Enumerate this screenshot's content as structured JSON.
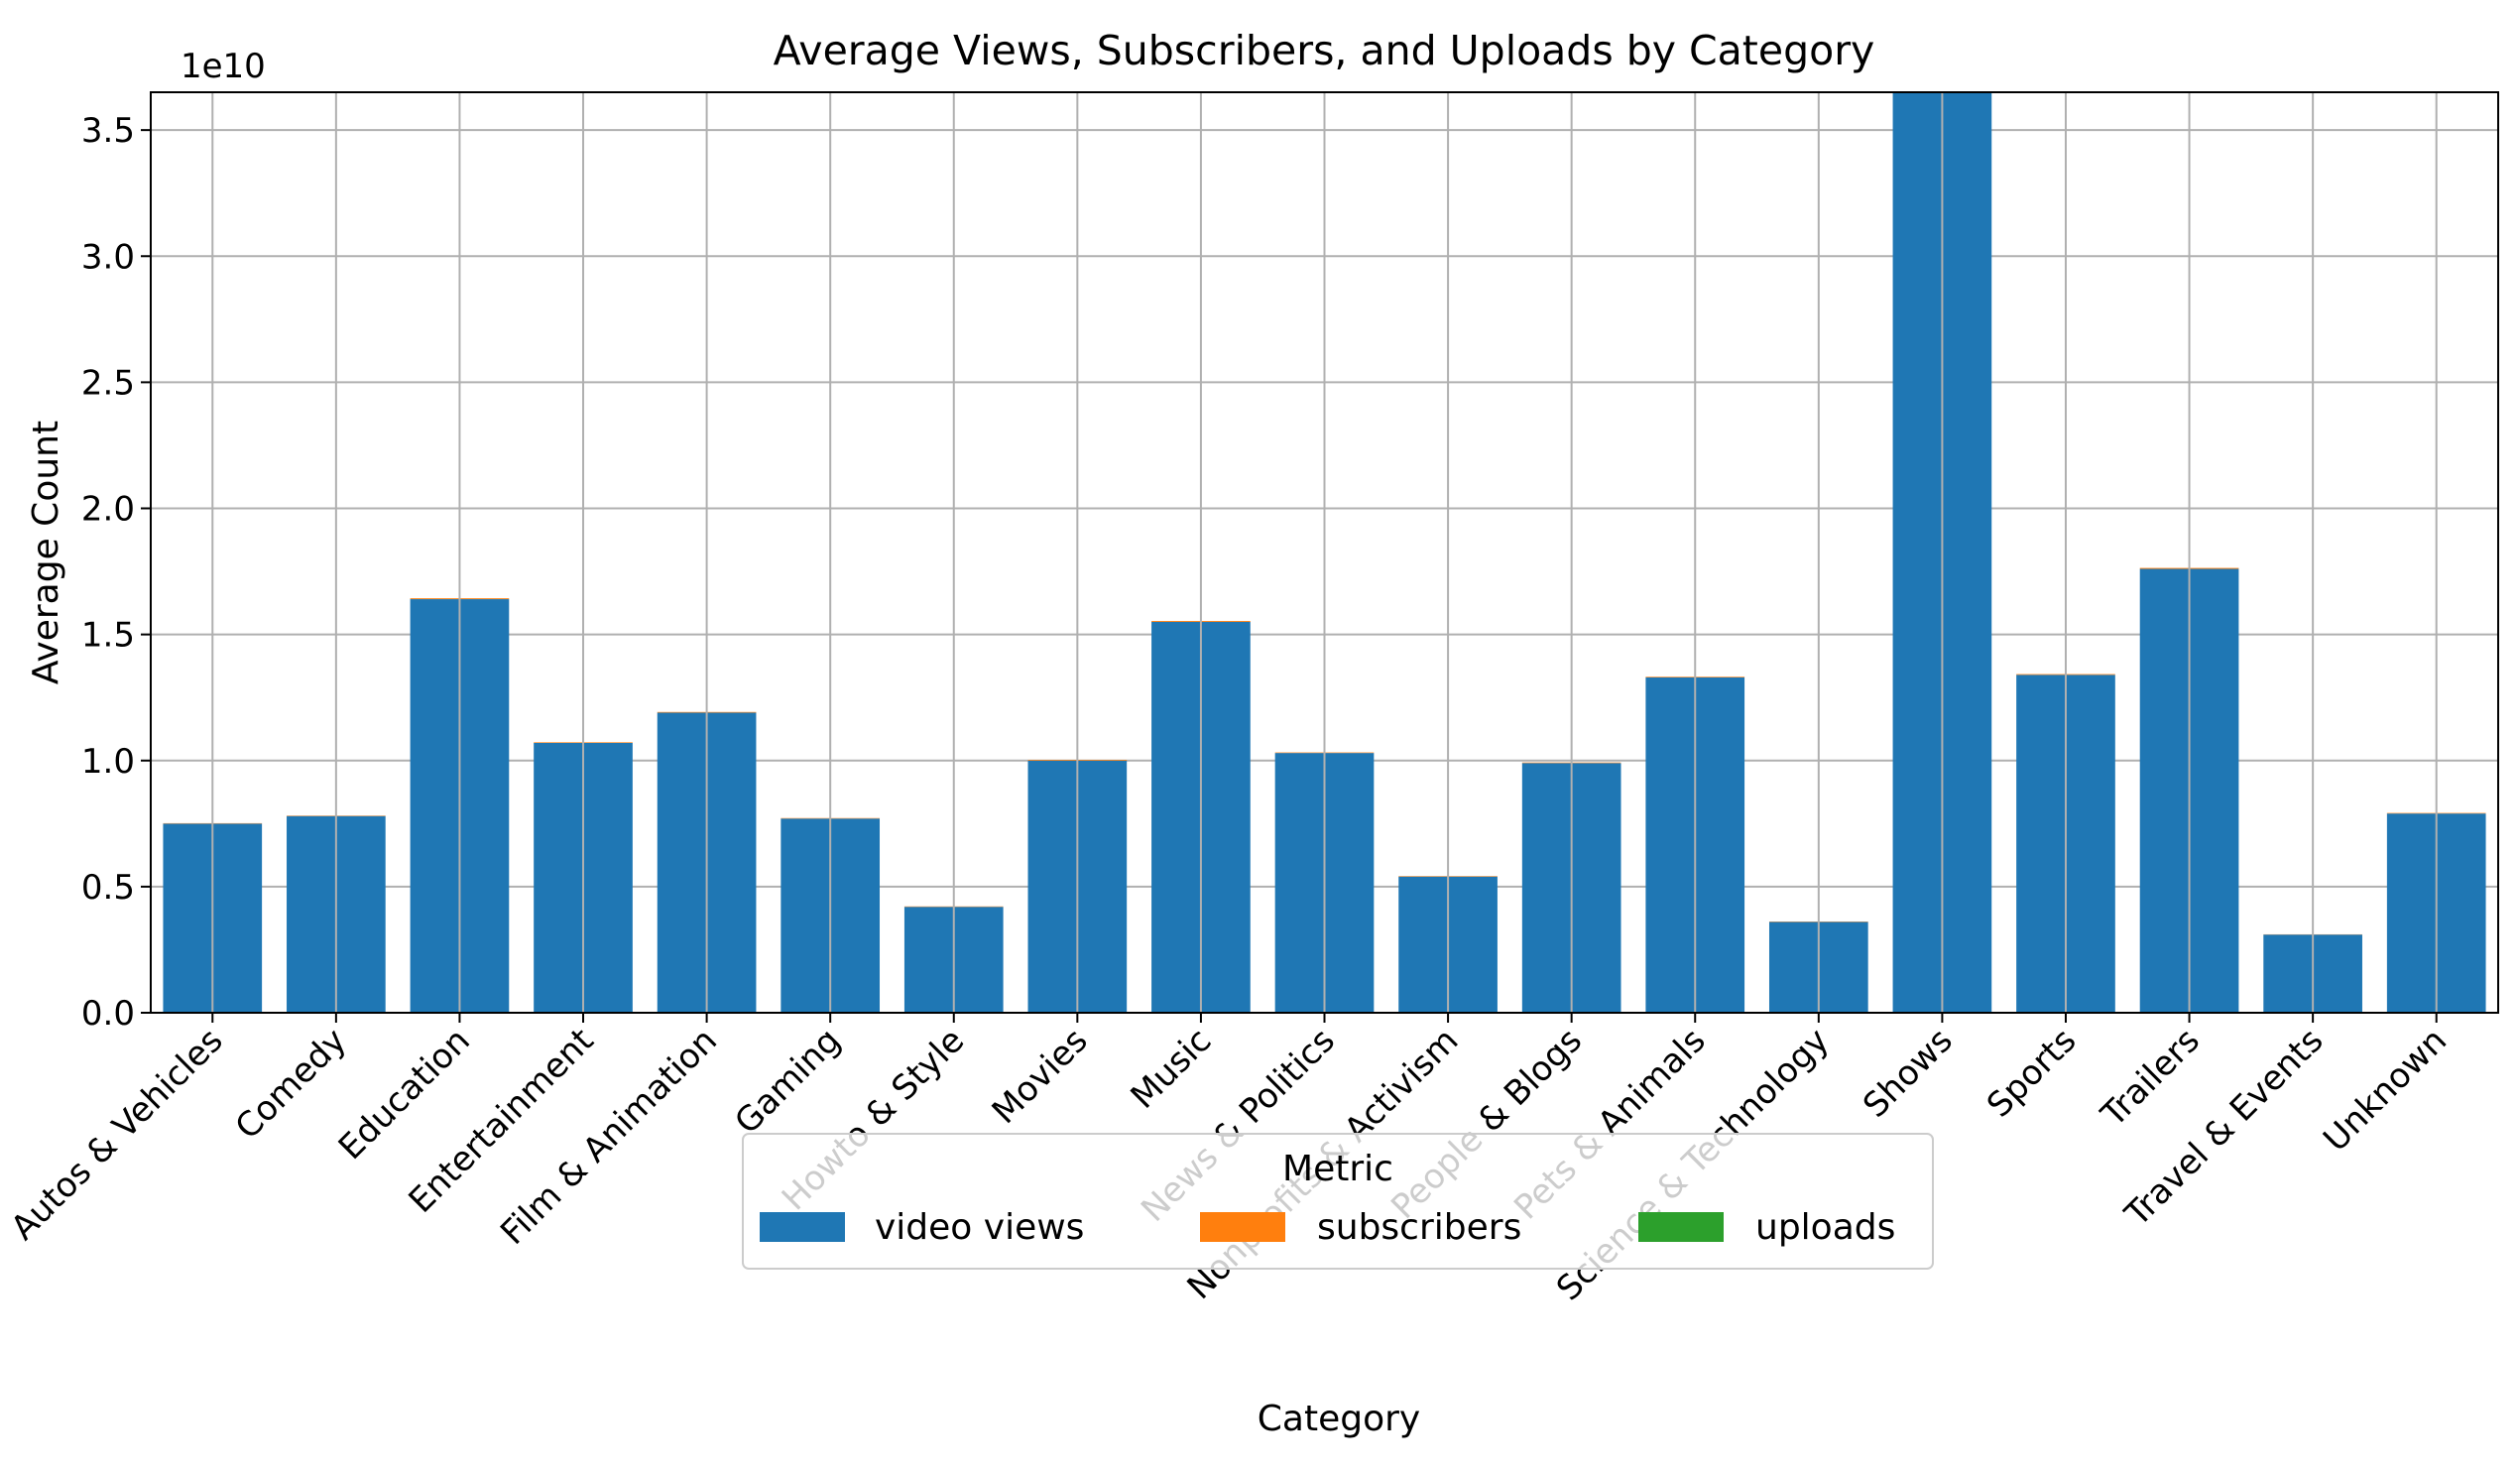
{
  "chart_data": {
    "type": "bar",
    "stacked": true,
    "title": "Average Views, Subscribers, and Uploads by Category",
    "xlabel": "Category",
    "ylabel": "Average Count",
    "y_offset_label": "1e10",
    "y_scale": 10000000000,
    "ylim": [
      0,
      36500000000
    ],
    "yticks": [
      0,
      5000000000,
      10000000000,
      15000000000,
      20000000000,
      25000000000,
      30000000000,
      35000000000
    ],
    "ytick_labels": [
      "0.0",
      "0.5",
      "1.0",
      "1.5",
      "2.0",
      "2.5",
      "3.0",
      "3.5"
    ],
    "grid": true,
    "legend": {
      "title": "Metric",
      "placement": "lower-center"
    },
    "categories": [
      "Autos & Vehicles",
      "Comedy",
      "Education",
      "Entertainment",
      "Film & Animation",
      "Gaming",
      "Howto & Style",
      "Movies",
      "Music",
      "News & Politics",
      "Nonprofits & Activism",
      "People & Blogs",
      "Pets & Animals",
      "Science & Technology",
      "Shows",
      "Sports",
      "Trailers",
      "Travel & Events",
      "Unknown"
    ],
    "series": [
      {
        "name": "video views",
        "color": "#1f77b4",
        "values": [
          7500000000,
          7800000000,
          16400000000,
          10700000000,
          11900000000,
          7700000000,
          4200000000,
          10000000000,
          15500000000,
          10300000000,
          5400000000,
          9900000000,
          13300000000,
          3600000000,
          36500000000,
          13400000000,
          17600000000,
          3100000000,
          7900000000
        ]
      },
      {
        "name": "subscribers",
        "color": "#ff7f0e",
        "values": [
          16000000,
          17000000,
          35000000,
          24000000,
          26000000,
          19000000,
          17000000,
          30000000,
          36000000,
          21000000,
          20000000,
          23000000,
          25000000,
          15000000,
          45000000,
          28000000,
          37000000,
          10000000,
          21000000
        ]
      },
      {
        "name": "uploads",
        "color": "#2ca02c",
        "values": [
          3000,
          9000,
          4000,
          12000,
          10000,
          5000,
          1000,
          600,
          3500,
          100000,
          20000,
          13000,
          6000,
          4000,
          1000,
          12000,
          4000,
          1500,
          1000
        ]
      }
    ]
  }
}
